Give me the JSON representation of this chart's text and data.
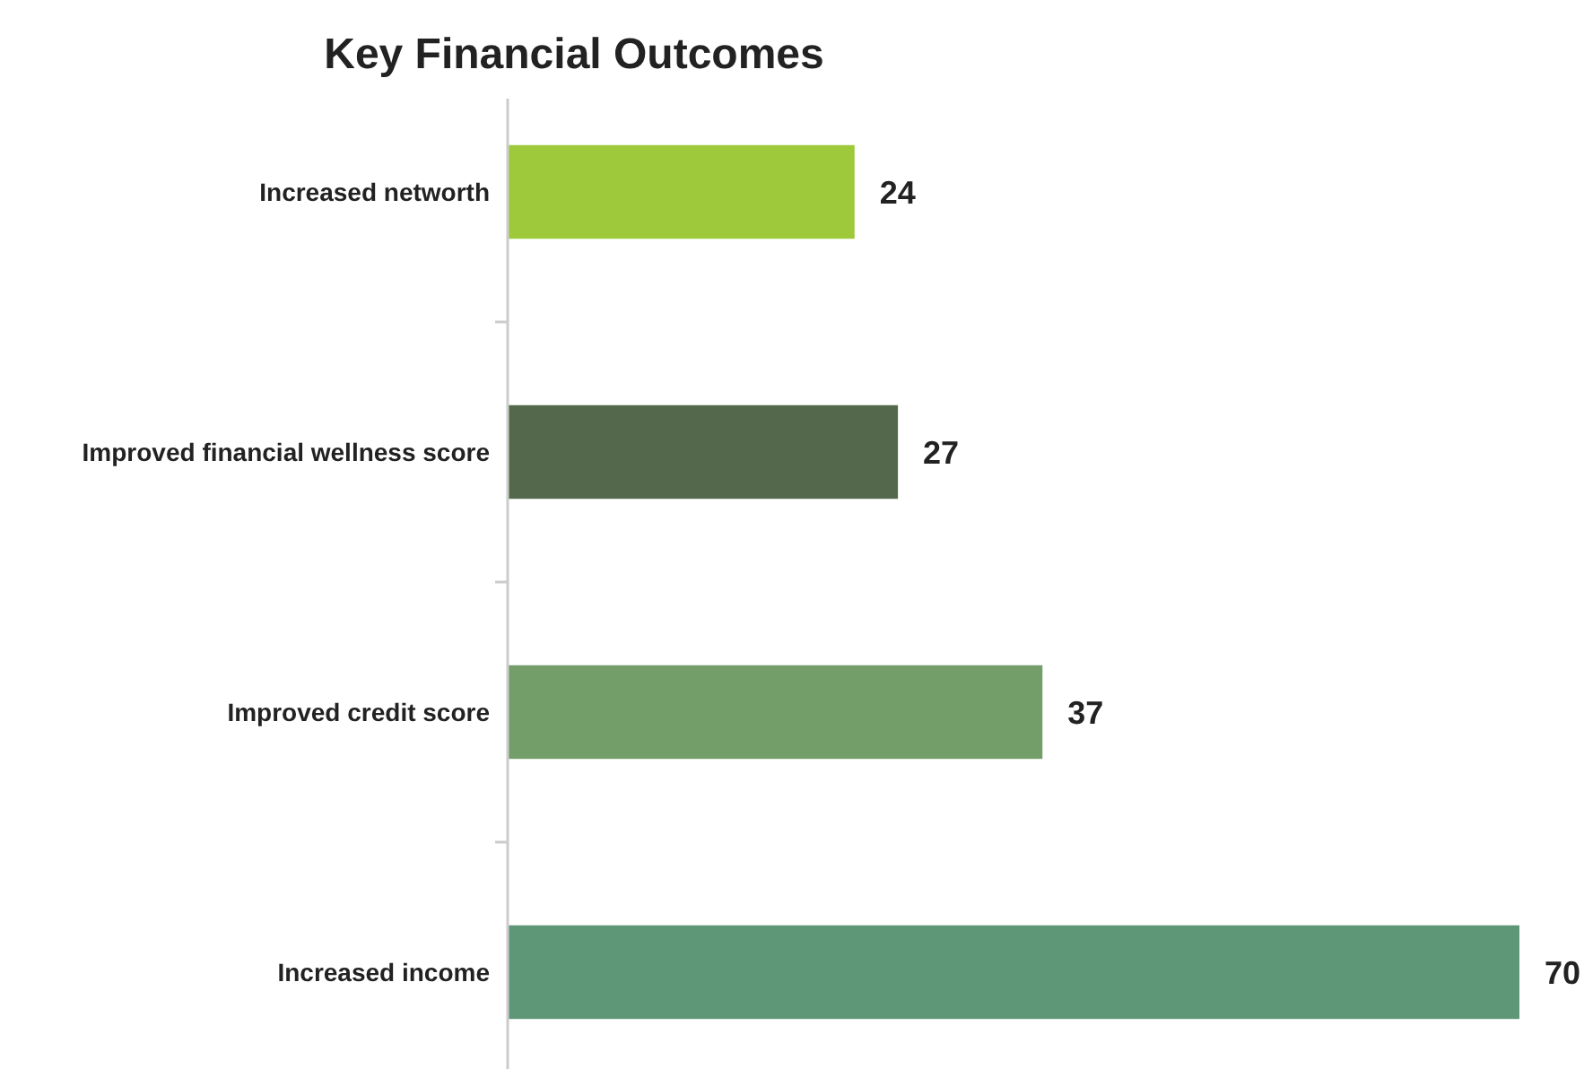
{
  "chart_data": {
    "type": "bar",
    "orientation": "horizontal",
    "title": "Key Financial Outcomes",
    "categories": [
      "Increased networth",
      "Improved financial wellness score",
      "Improved credit score",
      "Increased income"
    ],
    "values": [
      24,
      27,
      37,
      70
    ],
    "colors": [
      "#9dc93b",
      "#54694b",
      "#739d69",
      "#5e9778"
    ],
    "data_labels": true
  }
}
